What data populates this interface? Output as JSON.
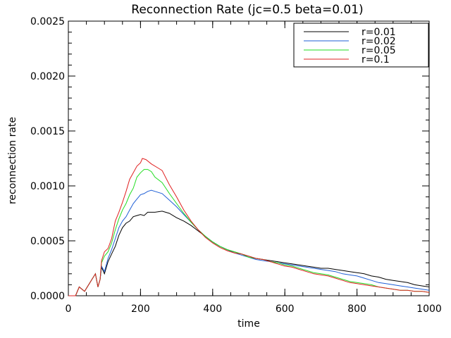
{
  "chart_data": {
    "type": "line",
    "title": "Reconnection Rate (jc=0.5 beta=0.01)",
    "xlabel": "time",
    "ylabel": "reconnection rate",
    "xlim": [
      0,
      1000
    ],
    "ylim": [
      0,
      0.0025
    ],
    "xticks": [
      0,
      200,
      400,
      600,
      800,
      1000
    ],
    "xtick_labels": [
      "0",
      "200",
      "400",
      "600",
      "800",
      "1000"
    ],
    "yticks": [
      0,
      0.0005,
      0.001,
      0.0015,
      0.002,
      0.0025
    ],
    "ytick_labels": [
      "0.0000",
      "0.0005",
      "0.0010",
      "0.0015",
      "0.0020",
      "0.0025"
    ],
    "grid": false,
    "legend_position": "top-right",
    "series": [
      {
        "name": "r=0.01",
        "color": "#000000",
        "points": [
          [
            0,
            0
          ],
          [
            10,
            0
          ],
          [
            20,
            0
          ],
          [
            30,
            8e-05
          ],
          [
            45,
            4e-05
          ],
          [
            60,
            0.00012
          ],
          [
            75,
            0.0002
          ],
          [
            82,
            8e-05
          ],
          [
            88,
            0.00015
          ],
          [
            92,
            0.00026
          ],
          [
            100,
            0.0002
          ],
          [
            110,
            0.00031
          ],
          [
            120,
            0.00038
          ],
          [
            130,
            0.00045
          ],
          [
            140,
            0.00055
          ],
          [
            150,
            0.00062
          ],
          [
            160,
            0.00066
          ],
          [
            170,
            0.00068
          ],
          [
            180,
            0.00072
          ],
          [
            190,
            0.00073
          ],
          [
            200,
            0.00074
          ],
          [
            210,
            0.00073
          ],
          [
            220,
            0.00076
          ],
          [
            240,
            0.00076
          ],
          [
            260,
            0.00077
          ],
          [
            280,
            0.00075
          ],
          [
            300,
            0.00071
          ],
          [
            320,
            0.00068
          ],
          [
            340,
            0.00064
          ],
          [
            360,
            0.00059
          ],
          [
            380,
            0.00054
          ],
          [
            400,
            0.00049
          ],
          [
            420,
            0.00045
          ],
          [
            440,
            0.00042
          ],
          [
            460,
            0.0004
          ],
          [
            480,
            0.00038
          ],
          [
            500,
            0.00036
          ],
          [
            520,
            0.00034
          ],
          [
            540,
            0.00033
          ],
          [
            560,
            0.00032
          ],
          [
            580,
            0.00031
          ],
          [
            600,
            0.0003
          ],
          [
            620,
            0.00029
          ],
          [
            640,
            0.00028
          ],
          [
            660,
            0.00027
          ],
          [
            680,
            0.00026
          ],
          [
            700,
            0.00025
          ],
          [
            720,
            0.00025
          ],
          [
            740,
            0.00024
          ],
          [
            760,
            0.00023
          ],
          [
            780,
            0.00022
          ],
          [
            800,
            0.00021
          ],
          [
            820,
            0.0002
          ],
          [
            840,
            0.00018
          ],
          [
            860,
            0.00017
          ],
          [
            880,
            0.00015
          ],
          [
            900,
            0.00014
          ],
          [
            920,
            0.00013
          ],
          [
            940,
            0.00012
          ],
          [
            960,
            0.0001
          ],
          [
            980,
            9e-05
          ],
          [
            1000,
            8e-05
          ]
        ]
      },
      {
        "name": "r=0.02",
        "color": "#1f5fd6",
        "points": [
          [
            0,
            0
          ],
          [
            10,
            0
          ],
          [
            20,
            0
          ],
          [
            30,
            8e-05
          ],
          [
            45,
            4e-05
          ],
          [
            60,
            0.00012
          ],
          [
            75,
            0.0002
          ],
          [
            82,
            8e-05
          ],
          [
            88,
            0.00015
          ],
          [
            92,
            0.00027
          ],
          [
            100,
            0.00022
          ],
          [
            110,
            0.00034
          ],
          [
            120,
            0.00042
          ],
          [
            130,
            0.00052
          ],
          [
            140,
            0.00062
          ],
          [
            150,
            0.00068
          ],
          [
            160,
            0.00072
          ],
          [
            170,
            0.00078
          ],
          [
            180,
            0.00084
          ],
          [
            190,
            0.00088
          ],
          [
            200,
            0.00092
          ],
          [
            210,
            0.00093
          ],
          [
            220,
            0.00095
          ],
          [
            230,
            0.00096
          ],
          [
            240,
            0.00095
          ],
          [
            260,
            0.00093
          ],
          [
            280,
            0.00087
          ],
          [
            300,
            0.00081
          ],
          [
            320,
            0.00074
          ],
          [
            340,
            0.00067
          ],
          [
            360,
            0.0006
          ],
          [
            380,
            0.00054
          ],
          [
            400,
            0.00049
          ],
          [
            420,
            0.00045
          ],
          [
            440,
            0.00042
          ],
          [
            460,
            0.00039
          ],
          [
            480,
            0.00037
          ],
          [
            500,
            0.00035
          ],
          [
            520,
            0.00033
          ],
          [
            540,
            0.00032
          ],
          [
            560,
            0.00031
          ],
          [
            580,
            0.0003
          ],
          [
            600,
            0.00029
          ],
          [
            620,
            0.00028
          ],
          [
            640,
            0.00027
          ],
          [
            660,
            0.00026
          ],
          [
            680,
            0.00025
          ],
          [
            700,
            0.00024
          ],
          [
            720,
            0.00023
          ],
          [
            740,
            0.00022
          ],
          [
            760,
            0.0002
          ],
          [
            780,
            0.00019
          ],
          [
            800,
            0.00018
          ],
          [
            820,
            0.00016
          ],
          [
            840,
            0.00014
          ],
          [
            860,
            0.00012
          ],
          [
            880,
            0.00011
          ],
          [
            900,
            0.0001
          ],
          [
            920,
            9e-05
          ],
          [
            940,
            8e-05
          ],
          [
            960,
            7e-05
          ],
          [
            980,
            6e-05
          ],
          [
            1000,
            5e-05
          ]
        ]
      },
      {
        "name": "r=0.05",
        "color": "#22dd22",
        "points": [
          [
            0,
            0
          ],
          [
            10,
            0
          ],
          [
            20,
            0
          ],
          [
            30,
            8e-05
          ],
          [
            45,
            4e-05
          ],
          [
            60,
            0.00012
          ],
          [
            75,
            0.0002
          ],
          [
            82,
            8e-05
          ],
          [
            88,
            0.00015
          ],
          [
            92,
            0.0003
          ],
          [
            100,
            0.00036
          ],
          [
            110,
            0.0004
          ],
          [
            120,
            0.00048
          ],
          [
            130,
            0.0006
          ],
          [
            140,
            0.0007
          ],
          [
            150,
            0.00078
          ],
          [
            160,
            0.00084
          ],
          [
            170,
            0.00092
          ],
          [
            180,
            0.00098
          ],
          [
            190,
            0.00108
          ],
          [
            200,
            0.00112
          ],
          [
            210,
            0.00115
          ],
          [
            220,
            0.00115
          ],
          [
            230,
            0.00113
          ],
          [
            240,
            0.00108
          ],
          [
            260,
            0.00103
          ],
          [
            280,
            0.00093
          ],
          [
            300,
            0.00084
          ],
          [
            320,
            0.00075
          ],
          [
            340,
            0.00067
          ],
          [
            360,
            0.0006
          ],
          [
            380,
            0.00054
          ],
          [
            400,
            0.00049
          ],
          [
            420,
            0.00045
          ],
          [
            440,
            0.00042
          ],
          [
            460,
            0.0004
          ],
          [
            480,
            0.00038
          ],
          [
            500,
            0.00035
          ],
          [
            520,
            0.00034
          ],
          [
            540,
            0.00033
          ],
          [
            560,
            0.00031
          ],
          [
            580,
            0.0003
          ],
          [
            600,
            0.00028
          ],
          [
            620,
            0.00027
          ],
          [
            640,
            0.00025
          ],
          [
            660,
            0.00023
          ],
          [
            680,
            0.00021
          ],
          [
            700,
            0.0002
          ],
          [
            720,
            0.00019
          ],
          [
            740,
            0.00017
          ],
          [
            760,
            0.00015
          ],
          [
            780,
            0.00013
          ],
          [
            800,
            0.00012
          ],
          [
            820,
            0.00011
          ],
          [
            840,
            0.0001
          ],
          [
            860,
            8e-05
          ],
          [
            880,
            7e-05
          ],
          [
            900,
            6e-05
          ],
          [
            920,
            5e-05
          ],
          [
            940,
            5e-05
          ],
          [
            960,
            4e-05
          ],
          [
            980,
            4e-05
          ],
          [
            1000,
            3e-05
          ]
        ]
      },
      {
        "name": "r=0.1",
        "color": "#e02020",
        "points": [
          [
            0,
            0
          ],
          [
            10,
            0
          ],
          [
            20,
            0
          ],
          [
            30,
            8e-05
          ],
          [
            45,
            4e-05
          ],
          [
            60,
            0.00012
          ],
          [
            75,
            0.0002
          ],
          [
            82,
            8e-05
          ],
          [
            88,
            0.00015
          ],
          [
            92,
            0.00032
          ],
          [
            100,
            0.0004
          ],
          [
            110,
            0.00043
          ],
          [
            120,
            0.00052
          ],
          [
            130,
            0.00068
          ],
          [
            140,
            0.00076
          ],
          [
            150,
            0.00085
          ],
          [
            160,
            0.00095
          ],
          [
            170,
            0.00106
          ],
          [
            180,
            0.00112
          ],
          [
            190,
            0.00118
          ],
          [
            200,
            0.00121
          ],
          [
            205,
            0.00125
          ],
          [
            215,
            0.00124
          ],
          [
            230,
            0.0012
          ],
          [
            250,
            0.00116
          ],
          [
            260,
            0.00114
          ],
          [
            280,
            0.00101
          ],
          [
            300,
            0.0009
          ],
          [
            320,
            0.00078
          ],
          [
            340,
            0.00068
          ],
          [
            360,
            0.0006
          ],
          [
            380,
            0.00053
          ],
          [
            400,
            0.00048
          ],
          [
            420,
            0.00044
          ],
          [
            440,
            0.00041
          ],
          [
            460,
            0.00039
          ],
          [
            480,
            0.00038
          ],
          [
            500,
            0.00036
          ],
          [
            520,
            0.00034
          ],
          [
            540,
            0.00033
          ],
          [
            560,
            0.00031
          ],
          [
            580,
            0.00029
          ],
          [
            600,
            0.00027
          ],
          [
            620,
            0.00026
          ],
          [
            640,
            0.00024
          ],
          [
            660,
            0.00022
          ],
          [
            680,
            0.0002
          ],
          [
            700,
            0.00019
          ],
          [
            720,
            0.00018
          ],
          [
            740,
            0.00016
          ],
          [
            760,
            0.00014
          ],
          [
            780,
            0.00012
          ],
          [
            800,
            0.00011
          ],
          [
            820,
            0.0001
          ],
          [
            840,
            9e-05
          ],
          [
            860,
            8e-05
          ],
          [
            880,
            7e-05
          ],
          [
            900,
            6e-05
          ],
          [
            920,
            5e-05
          ],
          [
            940,
            5e-05
          ],
          [
            960,
            4e-05
          ],
          [
            980,
            4e-05
          ],
          [
            1000,
            3e-05
          ]
        ]
      }
    ]
  }
}
